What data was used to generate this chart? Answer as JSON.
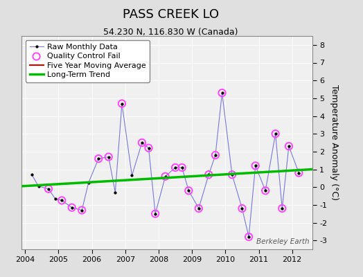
{
  "title": "PASS CREEK LO",
  "subtitle": "54.230 N, 116.830 W (Canada)",
  "ylabel": "Temperature Anomaly (°C)",
  "watermark": "Berkeley Earth",
  "xlim": [
    2003.9,
    2012.6
  ],
  "ylim": [
    -3.5,
    8.5
  ],
  "yticks": [
    -3,
    -2,
    -1,
    0,
    1,
    2,
    3,
    4,
    5,
    6,
    7,
    8
  ],
  "xticks": [
    2004,
    2005,
    2006,
    2007,
    2008,
    2009,
    2010,
    2011,
    2012
  ],
  "outer_bg": "#e0e0e0",
  "plot_bg": "#f0f0f0",
  "grid_color": "#ffffff",
  "raw_x": [
    2004.2,
    2004.4,
    2004.7,
    2004.9,
    2005.1,
    2005.4,
    2005.7,
    2005.9,
    2006.2,
    2006.5,
    2006.7,
    2006.9,
    2007.2,
    2007.5,
    2007.7,
    2007.9,
    2008.2,
    2008.5,
    2008.7,
    2008.9,
    2009.2,
    2009.5,
    2009.7,
    2009.9,
    2010.2,
    2010.5,
    2010.7,
    2010.9,
    2011.2,
    2011.5,
    2011.7,
    2011.9,
    2012.2
  ],
  "raw_y": [
    0.7,
    0.05,
    -0.1,
    -0.65,
    -0.75,
    -1.15,
    -1.3,
    0.25,
    1.6,
    1.7,
    -0.3,
    4.7,
    0.65,
    2.5,
    2.2,
    -1.5,
    0.6,
    1.1,
    1.1,
    -0.2,
    -1.2,
    0.7,
    1.8,
    5.3,
    0.7,
    -1.2,
    -2.8,
    1.2,
    -0.2,
    3.0,
    -1.2,
    2.3,
    0.8
  ],
  "qc_x": [
    2004.7,
    2005.1,
    2005.4,
    2005.7,
    2006.2,
    2006.5,
    2006.9,
    2007.5,
    2007.7,
    2007.9,
    2008.2,
    2008.5,
    2008.7,
    2008.9,
    2009.2,
    2009.5,
    2009.7,
    2009.9,
    2010.2,
    2010.5,
    2010.7,
    2010.9,
    2011.2,
    2011.5,
    2011.7,
    2011.9,
    2012.2
  ],
  "qc_y": [
    -0.1,
    -0.75,
    -1.15,
    -1.3,
    1.6,
    1.7,
    4.7,
    2.5,
    2.2,
    -1.5,
    0.6,
    1.1,
    1.1,
    -0.2,
    -1.2,
    0.7,
    1.8,
    5.3,
    0.7,
    -1.2,
    -2.8,
    1.2,
    -0.2,
    3.0,
    -1.2,
    2.3,
    0.8
  ],
  "trend_x": [
    2003.9,
    2012.6
  ],
  "trend_y": [
    0.05,
    1.0
  ],
  "raw_line_color": "#7777dd",
  "raw_dot_color": "#000000",
  "qc_face_color": "none",
  "qc_edge_color": "#ff44ff",
  "trend_color": "#00bb00",
  "mavg_color": "#dd0000",
  "legend_fs": 8,
  "title_fs": 13,
  "subtitle_fs": 9,
  "tick_fs": 8,
  "ylabel_fs": 9
}
